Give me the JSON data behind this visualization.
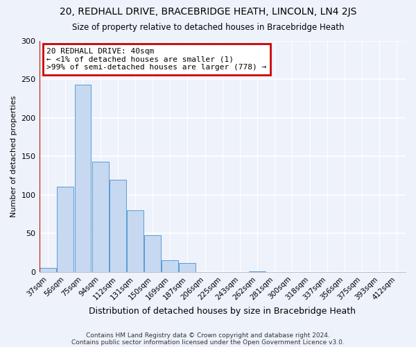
{
  "title": "20, REDHALL DRIVE, BRACEBRIDGE HEATH, LINCOLN, LN4 2JS",
  "subtitle": "Size of property relative to detached houses in Bracebridge Heath",
  "xlabel": "Distribution of detached houses by size in Bracebridge Heath",
  "ylabel": "Number of detached properties",
  "bar_color": "#c6d9f0",
  "bar_edge_color": "#5b9bd5",
  "bin_labels": [
    "37sqm",
    "56sqm",
    "75sqm",
    "94sqm",
    "112sqm",
    "131sqm",
    "150sqm",
    "169sqm",
    "187sqm",
    "206sqm",
    "225sqm",
    "243sqm",
    "262sqm",
    "281sqm",
    "300sqm",
    "318sqm",
    "337sqm",
    "356sqm",
    "375sqm",
    "393sqm",
    "412sqm"
  ],
  "bar_heights": [
    5,
    111,
    243,
    143,
    120,
    80,
    48,
    15,
    12,
    0,
    0,
    0,
    1,
    0,
    0,
    0,
    0,
    0,
    0,
    0,
    0
  ],
  "ylim": [
    0,
    300
  ],
  "yticks": [
    0,
    50,
    100,
    150,
    200,
    250,
    300
  ],
  "annotation_title": "20 REDHALL DRIVE: 40sqm",
  "annotation_line1": "← <1% of detached houses are smaller (1)",
  "annotation_line2": ">99% of semi-detached houses are larger (778) →",
  "annotation_box_color": "#ffffff",
  "annotation_box_edge": "#cc0000",
  "red_line_color": "#cc0000",
  "footnote1": "Contains HM Land Registry data © Crown copyright and database right 2024.",
  "footnote2": "Contains public sector information licensed under the Open Government Licence v3.0.",
  "background_color": "#eef2fb",
  "grid_color": "#ffffff",
  "spine_color": "#aaaaaa"
}
